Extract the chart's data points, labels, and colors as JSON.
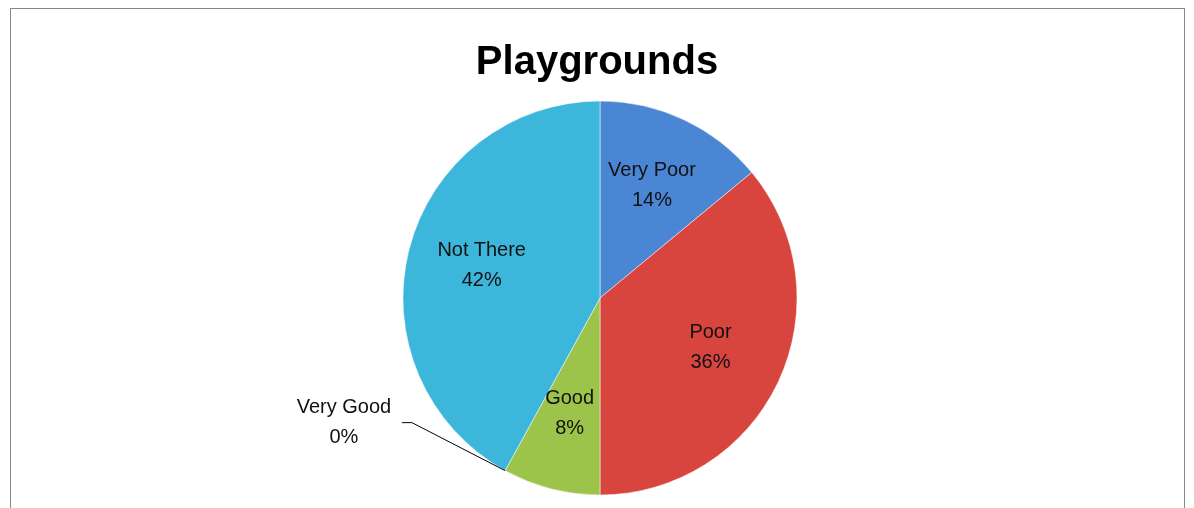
{
  "chart_data": {
    "type": "pie",
    "title": "Playgrounds",
    "categories": [
      "Very Poor",
      "Poor",
      "Good",
      "Very Good",
      "Not There"
    ],
    "values": [
      14,
      36,
      8,
      0,
      42
    ],
    "colors": [
      "#4a86d4",
      "#d8443e",
      "#9dc44a",
      null,
      "#3cb6da"
    ],
    "value_labels": [
      "14%",
      "36%",
      "8%",
      "0%",
      "42%"
    ],
    "legend": false
  }
}
